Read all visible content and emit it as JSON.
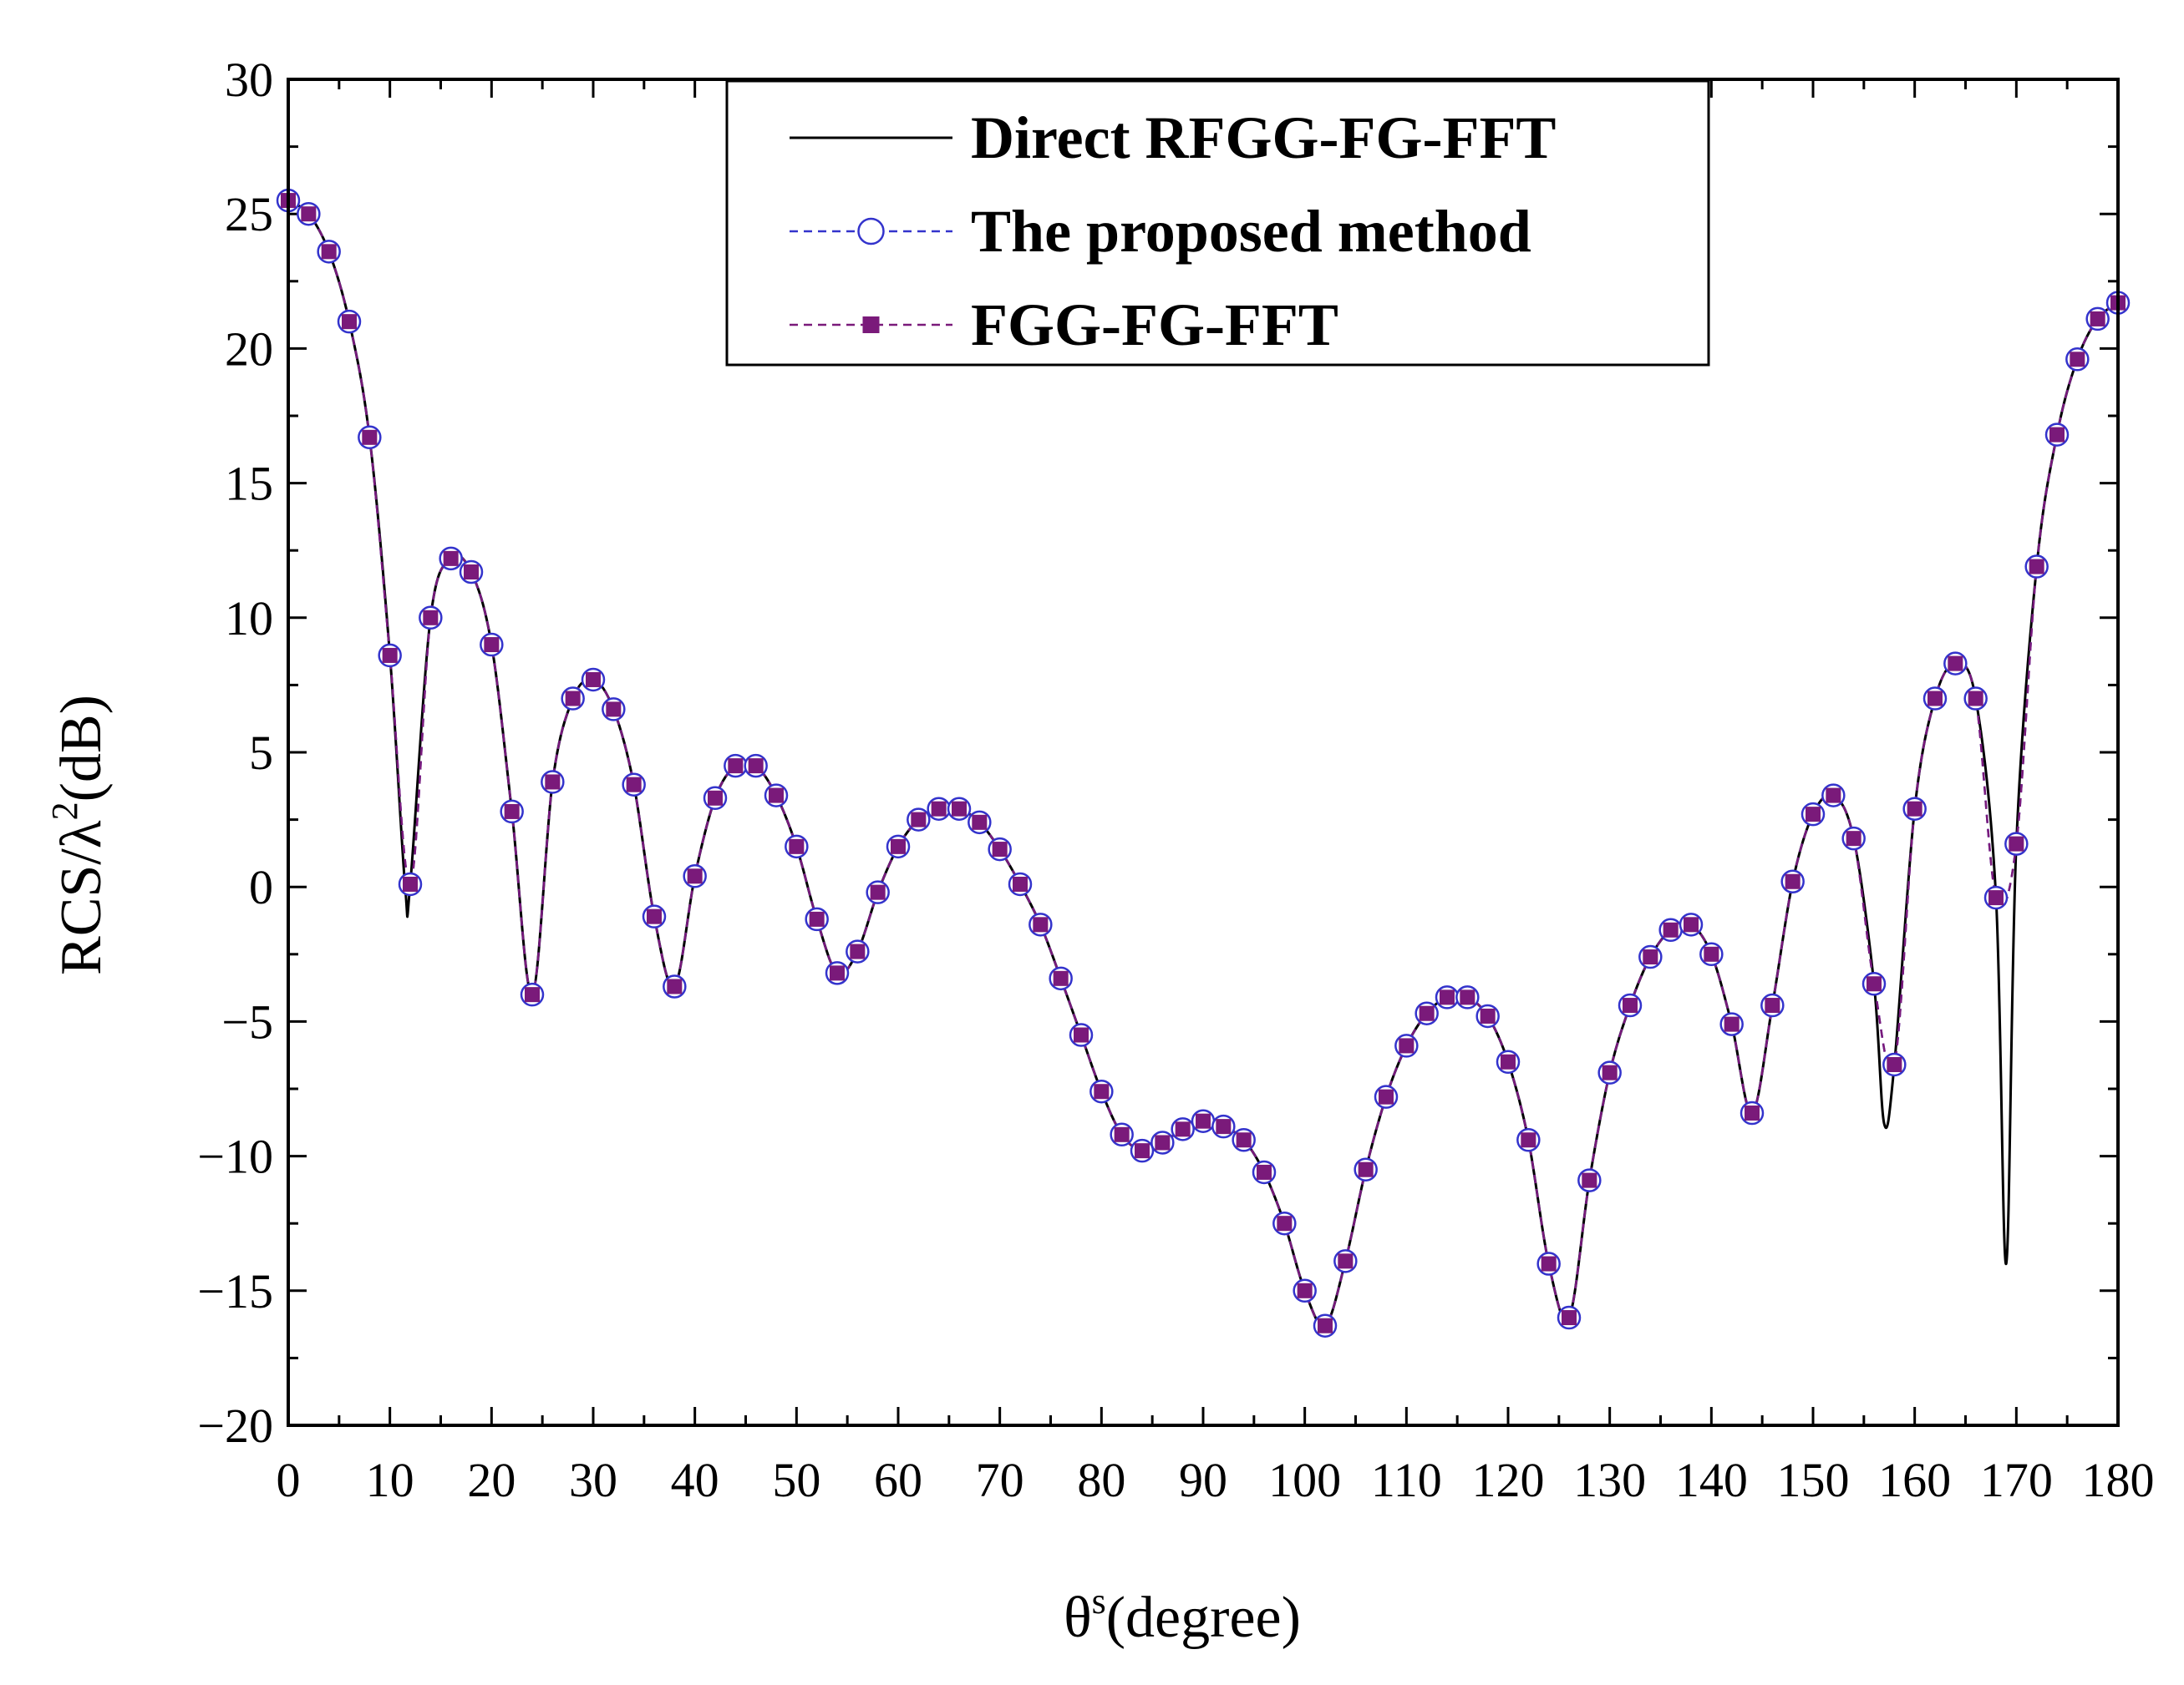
{
  "chart_data": {
    "type": "line",
    "xlabel": "θ",
    "xlabel_sup": "s",
    "xlabel_rest": "(degree)",
    "ylabel": "RCS/λ",
    "ylabel_sup": "2",
    "ylabel_rest": "(dB)",
    "xlim": [
      0,
      180
    ],
    "ylim": [
      -20,
      30
    ],
    "xticks": [
      0,
      10,
      20,
      30,
      40,
      50,
      60,
      70,
      80,
      90,
      100,
      110,
      120,
      130,
      140,
      150,
      160,
      170,
      180
    ],
    "yticks": [
      30,
      25,
      20,
      15,
      10,
      5,
      0,
      -5,
      -10,
      -15,
      -20
    ],
    "ytick_labels": [
      "30",
      "25",
      "20",
      "15",
      "10",
      "5",
      "0",
      "−5",
      "−10",
      "−15",
      "−20"
    ],
    "legend_position": "top-center",
    "x": [
      0,
      2,
      4,
      6,
      8,
      10,
      12,
      14,
      16,
      18,
      20,
      22,
      24,
      26,
      28,
      30,
      32,
      34,
      36,
      38,
      40,
      42,
      44,
      46,
      48,
      50,
      52,
      54,
      56,
      58,
      60,
      62,
      64,
      66,
      68,
      70,
      72,
      74,
      76,
      78,
      80,
      82,
      84,
      86,
      88,
      90,
      92,
      94,
      96,
      98,
      100,
      102,
      104,
      106,
      108,
      110,
      112,
      114,
      116,
      118,
      120,
      122,
      124,
      126,
      128,
      130,
      132,
      134,
      136,
      138,
      140,
      142,
      144,
      146,
      148,
      150,
      152,
      154,
      156,
      158,
      160,
      162,
      164,
      166,
      168,
      170,
      172,
      174,
      176,
      178,
      180
    ],
    "series": [
      {
        "name": "Direct RFGG-FG-FFT",
        "color": "#000000",
        "style": "solid",
        "marker": "none",
        "extra_points": [
          [
            11.5,
            0.0
          ],
          [
            157,
            -8.8
          ],
          [
            169,
            -14.0
          ]
        ],
        "values": [
          25.5,
          25.0,
          23.6,
          21.0,
          16.7,
          8.6,
          0.1,
          10.0,
          12.2,
          11.7,
          9.0,
          2.8,
          -4.0,
          3.9,
          7.0,
          7.7,
          6.6,
          3.8,
          -1.1,
          -3.7,
          0.4,
          3.3,
          4.5,
          4.5,
          3.4,
          1.5,
          -1.2,
          -3.2,
          -2.4,
          -0.2,
          1.5,
          2.5,
          2.9,
          2.9,
          2.4,
          1.4,
          0.1,
          -1.4,
          -3.4,
          -5.5,
          -7.6,
          -9.2,
          -9.8,
          -9.5,
          -9.0,
          -8.7,
          -8.9,
          -9.4,
          -10.6,
          -12.5,
          -15.0,
          -16.3,
          -13.9,
          -10.5,
          -7.8,
          -5.9,
          -4.7,
          -4.1,
          -4.1,
          -4.8,
          -6.5,
          -9.4,
          -14.0,
          -16.0,
          -10.9,
          -6.9,
          -4.4,
          -2.6,
          -1.6,
          -1.4,
          -2.5,
          -5.1,
          -8.4,
          -4.4,
          0.2,
          2.7,
          3.4,
          1.8,
          -3.6,
          -6.6,
          2.9,
          7.0,
          8.3,
          7.0,
          -0.4,
          1.6,
          11.9,
          16.8,
          19.6,
          21.1,
          21.7
        ]
      },
      {
        "name": "The proposed method",
        "color": "#3333cc",
        "style": "dashed",
        "marker": "circle",
        "values": [
          25.5,
          25.0,
          23.6,
          21.0,
          16.7,
          8.6,
          0.1,
          10.0,
          12.2,
          11.7,
          9.0,
          2.8,
          -4.0,
          3.9,
          7.0,
          7.7,
          6.6,
          3.8,
          -1.1,
          -3.7,
          0.4,
          3.3,
          4.5,
          4.5,
          3.4,
          1.5,
          -1.2,
          -3.2,
          -2.4,
          -0.2,
          1.5,
          2.5,
          2.9,
          2.9,
          2.4,
          1.4,
          0.1,
          -1.4,
          -3.4,
          -5.5,
          -7.6,
          -9.2,
          -9.8,
          -9.5,
          -9.0,
          -8.7,
          -8.9,
          -9.4,
          -10.6,
          -12.5,
          -15.0,
          -16.3,
          -13.9,
          -10.5,
          -7.8,
          -5.9,
          -4.7,
          -4.1,
          -4.1,
          -4.8,
          -6.5,
          -9.4,
          -14.0,
          -16.0,
          -10.9,
          -6.9,
          -4.4,
          -2.6,
          -1.6,
          -1.4,
          -2.5,
          -5.1,
          -8.4,
          -4.4,
          0.2,
          2.7,
          3.4,
          1.8,
          -3.6,
          -6.6,
          2.9,
          7.0,
          8.3,
          7.0,
          -0.4,
          1.6,
          11.9,
          16.8,
          19.6,
          21.1,
          21.7
        ]
      },
      {
        "name": "FGG-FG-FFT",
        "color": "#7a1a7a",
        "style": "dashed",
        "marker": "square",
        "values": [
          25.5,
          25.0,
          23.6,
          21.0,
          16.7,
          8.6,
          0.1,
          10.0,
          12.2,
          11.7,
          9.0,
          2.8,
          -4.0,
          3.9,
          7.0,
          7.7,
          6.6,
          3.8,
          -1.1,
          -3.7,
          0.4,
          3.3,
          4.5,
          4.5,
          3.4,
          1.5,
          -1.2,
          -3.2,
          -2.4,
          -0.2,
          1.5,
          2.5,
          2.9,
          2.9,
          2.4,
          1.4,
          0.1,
          -1.4,
          -3.4,
          -5.5,
          -7.6,
          -9.2,
          -9.8,
          -9.5,
          -9.0,
          -8.7,
          -8.9,
          -9.4,
          -10.6,
          -12.5,
          -15.0,
          -16.3,
          -13.9,
          -10.5,
          -7.8,
          -5.9,
          -4.7,
          -4.1,
          -4.1,
          -4.8,
          -6.5,
          -9.4,
          -14.0,
          -16.0,
          -10.9,
          -6.9,
          -4.4,
          -2.6,
          -1.6,
          -1.4,
          -2.5,
          -5.1,
          -8.4,
          -4.4,
          0.2,
          2.7,
          3.4,
          1.8,
          -3.6,
          -6.6,
          2.9,
          7.0,
          8.3,
          7.0,
          -0.4,
          1.6,
          11.9,
          16.8,
          19.6,
          21.1,
          21.7
        ]
      }
    ]
  }
}
